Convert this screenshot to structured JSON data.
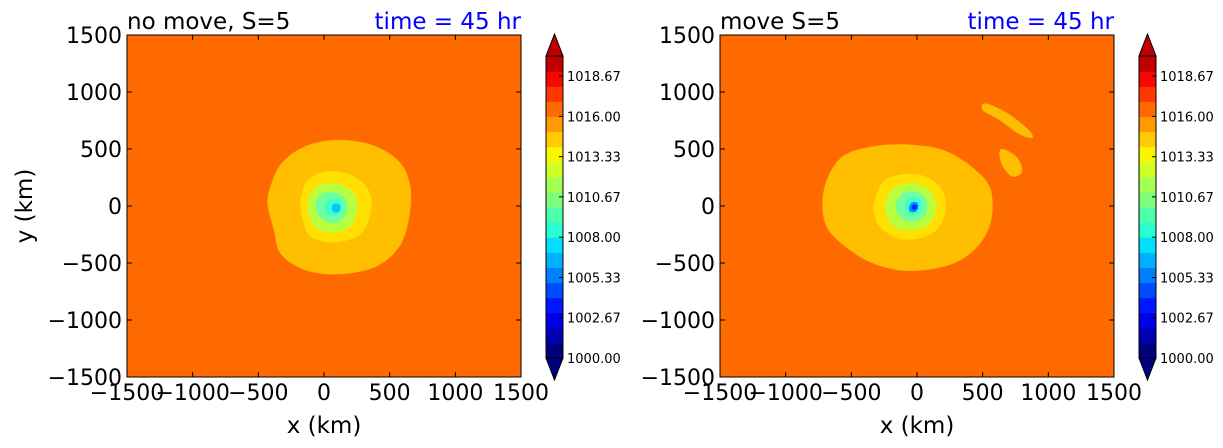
{
  "chart_data": [
    {
      "type": "heatmap",
      "title_left": "no move, S=5",
      "title_right": "time = 45 hr",
      "title_right_color": "#0000ff",
      "xlabel": "x (km)",
      "ylabel": "y (km)",
      "xlim": [
        -1500,
        1500
      ],
      "ylim": [
        -1500,
        1500
      ],
      "xticks": [
        -1500,
        -1000,
        -500,
        0,
        500,
        1000,
        1500
      ],
      "yticks": [
        -1500,
        -1000,
        -500,
        0,
        500,
        1000,
        1500
      ],
      "field": "contour",
      "background_level": 1016.5,
      "contours": [
        {
          "level": 1014.5,
          "color": "#ffbf00",
          "points": [
            [
              -430,
              20
            ],
            [
              -400,
              200
            ],
            [
              -320,
              380
            ],
            [
              -150,
              520
            ],
            [
              100,
              580
            ],
            [
              380,
              530
            ],
            [
              580,
              380
            ],
            [
              660,
              150
            ],
            [
              640,
              -150
            ],
            [
              560,
              -380
            ],
            [
              380,
              -540
            ],
            [
              100,
              -600
            ],
            [
              -150,
              -560
            ],
            [
              -330,
              -420
            ],
            [
              -380,
              -220
            ]
          ]
        },
        {
          "level": 1013.3,
          "color": "#ffe000",
          "points": [
            [
              -170,
              100
            ],
            [
              -120,
              230
            ],
            [
              0,
              300
            ],
            [
              160,
              290
            ],
            [
              300,
              200
            ],
            [
              360,
              60
            ],
            [
              340,
              -120
            ],
            [
              260,
              -260
            ],
            [
              80,
              -320
            ],
            [
              -100,
              -270
            ],
            [
              -160,
              -130
            ],
            [
              -180,
              0
            ]
          ]
        },
        {
          "level": 1012,
          "color": "#b8ff40",
          "points": [
            [
              -110,
              80
            ],
            [
              -50,
              170
            ],
            [
              60,
              200
            ],
            [
              180,
              160
            ],
            [
              250,
              50
            ],
            [
              240,
              -100
            ],
            [
              170,
              -200
            ],
            [
              40,
              -230
            ],
            [
              -70,
              -180
            ],
            [
              -120,
              -60
            ]
          ]
        },
        {
          "level": 1010.5,
          "color": "#6fffa0",
          "points": [
            [
              -60,
              40
            ],
            [
              -10,
              110
            ],
            [
              80,
              120
            ],
            [
              160,
              70
            ],
            [
              180,
              -30
            ],
            [
              140,
              -120
            ],
            [
              60,
              -150
            ],
            [
              -20,
              -110
            ],
            [
              -60,
              -40
            ]
          ]
        },
        {
          "level": 1009,
          "color": "#3cffd0",
          "points": [
            [
              10,
              10
            ],
            [
              50,
              60
            ],
            [
              120,
              50
            ],
            [
              140,
              -20
            ],
            [
              100,
              -80
            ],
            [
              40,
              -80
            ],
            [
              10,
              -40
            ]
          ]
        },
        {
          "level": 1007,
          "color": "#00c8ff",
          "points": [
            [
              60,
              -10
            ],
            [
              80,
              20
            ],
            [
              120,
              10
            ],
            [
              120,
              -40
            ],
            [
              90,
              -60
            ],
            [
              65,
              -40
            ]
          ]
        }
      ],
      "colorbar": {
        "tick_labels": [
          "1000.00",
          "1002.67",
          "1005.33",
          "1008.00",
          "1010.67",
          "1013.33",
          "1016.00",
          "1018.67"
        ],
        "min": 1000,
        "max": 1020,
        "extend": "both",
        "colors": [
          "#00007f",
          "#0000b2",
          "#0000e6",
          "#0018ff",
          "#004cff",
          "#0080ff",
          "#00b0ff",
          "#00e0fb",
          "#29ffce",
          "#4dffaa",
          "#7dff7a",
          "#a4ff53",
          "#ceff29",
          "#faf500",
          "#ffca00",
          "#ff9a00",
          "#ff6a00",
          "#ff3800",
          "#f50800",
          "#c00000"
        ]
      }
    },
    {
      "type": "heatmap",
      "title_left": "move S=5",
      "title_right": "time = 45 hr",
      "title_right_color": "#0000ff",
      "xlabel": "x (km)",
      "ylabel": "",
      "xlim": [
        -1500,
        1500
      ],
      "ylim": [
        -1500,
        1500
      ],
      "xticks": [
        -1500,
        -1000,
        -500,
        0,
        500,
        1000,
        1500
      ],
      "yticks": [
        -1500,
        -1000,
        -500,
        0,
        500,
        1000,
        1500
      ],
      "field": "contour",
      "background_level": 1016.5,
      "contours": [
        {
          "level": 1014.5,
          "color": "#ffbf00",
          "points": [
            [
              -720,
              20
            ],
            [
              -680,
              250
            ],
            [
              -560,
              440
            ],
            [
              -350,
              520
            ],
            [
              -80,
              540
            ],
            [
              200,
              490
            ],
            [
              420,
              340
            ],
            [
              560,
              150
            ],
            [
              560,
              -150
            ],
            [
              440,
              -380
            ],
            [
              240,
              -520
            ],
            [
              -60,
              -570
            ],
            [
              -320,
              -510
            ],
            [
              -520,
              -380
            ],
            [
              -680,
              -200
            ]
          ]
        },
        {
          "level": 1014.5,
          "color": "#ffbf00",
          "points": [
            [
              520,
              900
            ],
            [
              680,
              820
            ],
            [
              840,
              680
            ],
            [
              880,
              600
            ],
            [
              780,
              630
            ],
            [
              620,
              760
            ],
            [
              500,
              840
            ]
          ]
        },
        {
          "level": 1014.5,
          "color": "#ffbf00",
          "points": [
            [
              640,
              500
            ],
            [
              760,
              430
            ],
            [
              800,
              300
            ],
            [
              720,
              260
            ],
            [
              640,
              380
            ]
          ]
        },
        {
          "level": 1013.3,
          "color": "#ffe000",
          "points": [
            [
              -320,
              60
            ],
            [
              -250,
              220
            ],
            [
              -100,
              280
            ],
            [
              60,
              260
            ],
            [
              180,
              160
            ],
            [
              220,
              0
            ],
            [
              180,
              -170
            ],
            [
              60,
              -270
            ],
            [
              -120,
              -290
            ],
            [
              -270,
              -200
            ],
            [
              -330,
              -60
            ]
          ]
        },
        {
          "level": 1012,
          "color": "#b8ff40",
          "points": [
            [
              -240,
              40
            ],
            [
              -170,
              160
            ],
            [
              -40,
              200
            ],
            [
              80,
              150
            ],
            [
              140,
              40
            ],
            [
              120,
              -110
            ],
            [
              20,
              -200
            ],
            [
              -120,
              -210
            ],
            [
              -220,
              -120
            ]
          ]
        },
        {
          "level": 1010.5,
          "color": "#6fffa0",
          "points": [
            [
              -160,
              20
            ],
            [
              -110,
              110
            ],
            [
              -20,
              130
            ],
            [
              60,
              80
            ],
            [
              80,
              -20
            ],
            [
              40,
              -110
            ],
            [
              -60,
              -140
            ],
            [
              -140,
              -80
            ]
          ]
        },
        {
          "level": 1009,
          "color": "#3cffd0",
          "points": [
            [
              -90,
              10
            ],
            [
              -60,
              70
            ],
            [
              10,
              70
            ],
            [
              40,
              10
            ],
            [
              20,
              -60
            ],
            [
              -40,
              -80
            ],
            [
              -80,
              -40
            ]
          ]
        },
        {
          "level": 1006,
          "color": "#0090ff",
          "points": [
            [
              -60,
              -10
            ],
            [
              -40,
              30
            ],
            [
              0,
              30
            ],
            [
              10,
              -10
            ],
            [
              -10,
              -50
            ],
            [
              -50,
              -50
            ]
          ]
        },
        {
          "level": 1003,
          "color": "#0020ff",
          "points": [
            [
              -40,
              -20
            ],
            [
              -30,
              10
            ],
            [
              -5,
              10
            ],
            [
              0,
              -20
            ],
            [
              -20,
              -35
            ]
          ]
        }
      ],
      "colorbar": {
        "tick_labels": [
          "1000.00",
          "1002.67",
          "1005.33",
          "1008.00",
          "1010.67",
          "1013.33",
          "1016.00",
          "1018.67"
        ],
        "min": 1000,
        "max": 1020,
        "extend": "both",
        "colors": [
          "#00007f",
          "#0000b2",
          "#0000e6",
          "#0018ff",
          "#004cff",
          "#0080ff",
          "#00b0ff",
          "#00e0fb",
          "#29ffce",
          "#4dffaa",
          "#7dff7a",
          "#a4ff53",
          "#ceff29",
          "#faf500",
          "#ffca00",
          "#ff9a00",
          "#ff6a00",
          "#ff3800",
          "#f50800",
          "#c00000"
        ]
      }
    }
  ]
}
